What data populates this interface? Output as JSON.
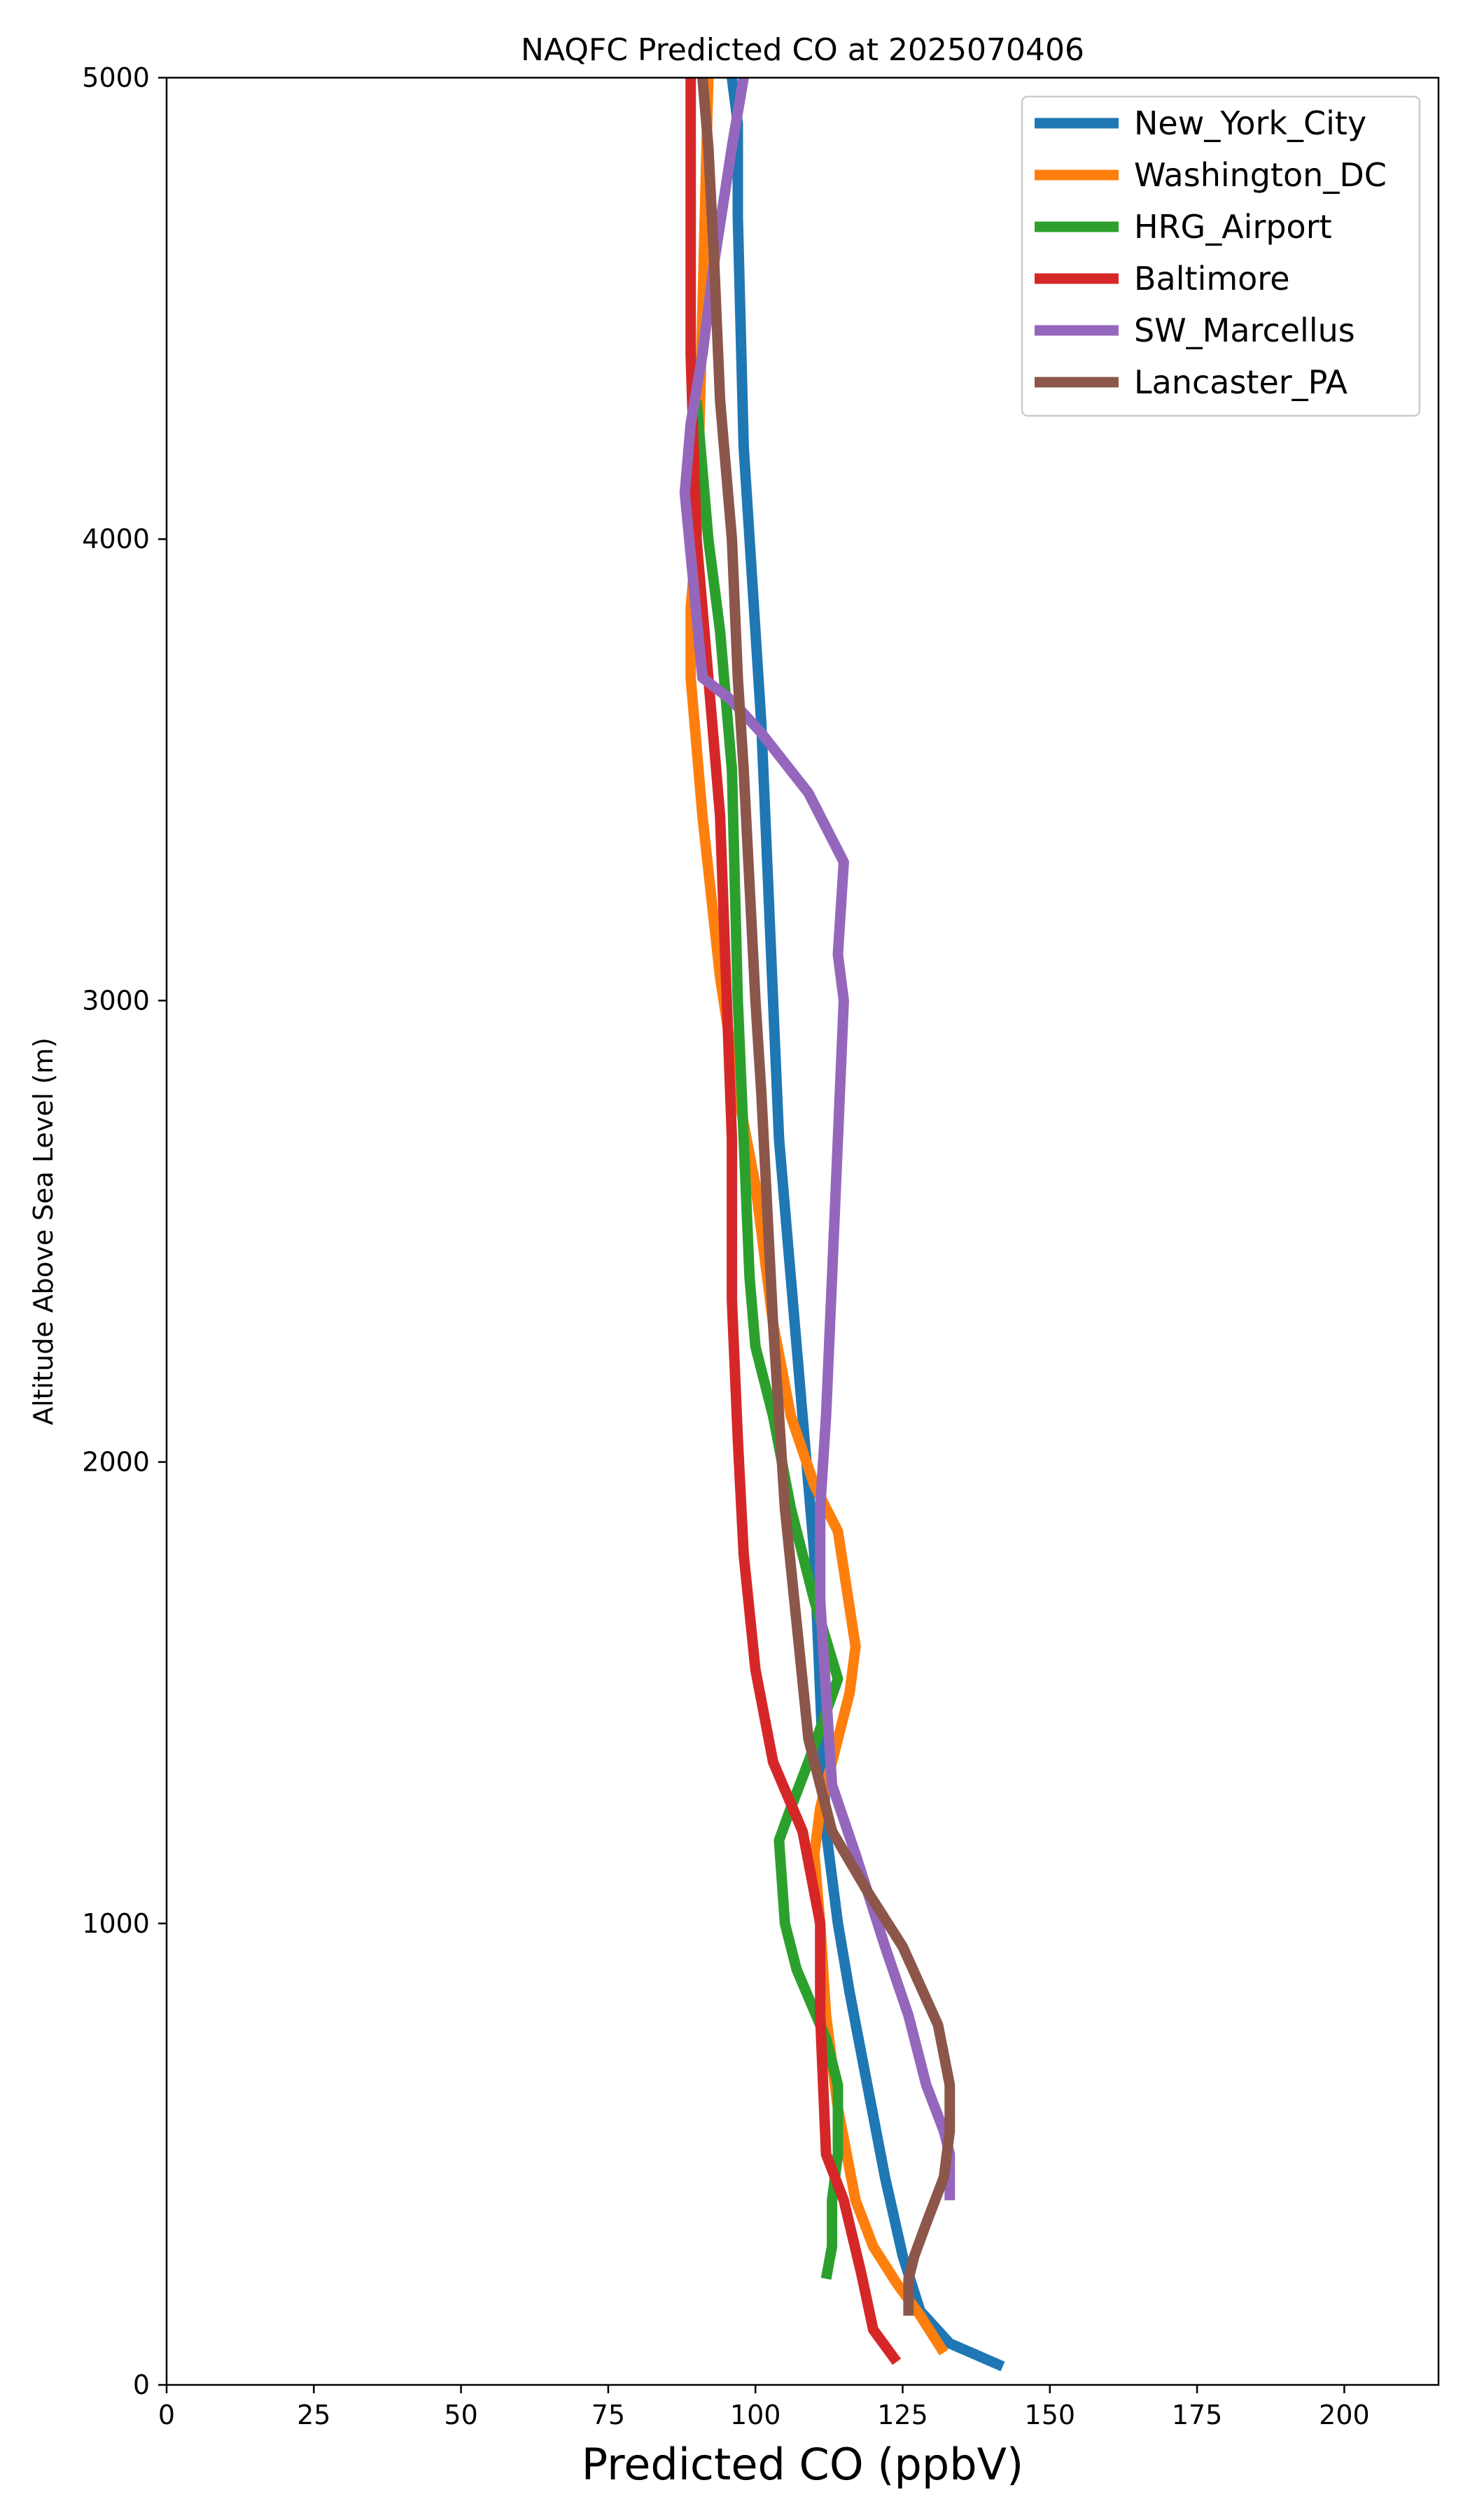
{
  "chart_data": {
    "type": "line",
    "title": "NAQFC Predicted CO at 2025070406",
    "xlabel": "Predicted CO (ppbV)",
    "ylabel": "Altitude Above Sea Level (m)",
    "xlim": [
      0,
      216
    ],
    "ylim": [
      0,
      5000
    ],
    "xticks": [
      0,
      25,
      50,
      75,
      100,
      125,
      150,
      175,
      200
    ],
    "yticks": [
      0,
      1000,
      2000,
      3000,
      4000,
      5000
    ],
    "grid": false,
    "legend_position": "top-right",
    "series": [
      {
        "name": "New_York_City",
        "color": "#1f77b4",
        "x": [
          142,
          133,
          128,
          125,
          122,
          119,
          116,
          114,
          112,
          111,
          110,
          108,
          106,
          104,
          103,
          102,
          101,
          100,
          99,
          98,
          97,
          97,
          96
        ],
        "y": [
          40,
          90,
          160,
          280,
          450,
          650,
          850,
          1000,
          1200,
          1500,
          1800,
          2100,
          2400,
          2700,
          3000,
          3300,
          3600,
          3800,
          4000,
          4200,
          4700,
          4900,
          5000
        ]
      },
      {
        "name": "Washington_DC",
        "color": "#ff7f0e",
        "x": [
          132,
          128,
          124,
          120,
          117,
          114,
          112,
          111,
          110,
          111,
          114,
          116,
          117,
          114,
          110,
          106,
          103,
          100,
          97,
          94,
          91,
          89,
          89,
          90,
          91,
          92
        ],
        "y": [
          70,
          150,
          220,
          300,
          400,
          600,
          800,
          1000,
          1150,
          1250,
          1400,
          1500,
          1600,
          1850,
          1950,
          2100,
          2300,
          2600,
          2800,
          3050,
          3400,
          3700,
          3850,
          4000,
          4500,
          5000
        ]
      },
      {
        "name": "HRG_Airport",
        "color": "#2ca02c",
        "x": [
          112,
          113,
          113,
          114,
          114,
          112,
          107,
          105,
          104,
          106,
          109,
          114,
          110,
          106,
          103,
          100,
          99,
          98,
          97,
          96,
          94,
          92,
          90
        ],
        "y": [
          230,
          300,
          400,
          500,
          650,
          750,
          900,
          1000,
          1180,
          1250,
          1350,
          1530,
          1700,
          1900,
          2100,
          2250,
          2400,
          2700,
          3000,
          3500,
          3800,
          4000,
          4300
        ]
      },
      {
        "name": "Baltimore",
        "color": "#d62728",
        "x": [
          124,
          120,
          118,
          115,
          112,
          111,
          111,
          108,
          103,
          100,
          98,
          97,
          96,
          96,
          95,
          94,
          92,
          90,
          89,
          89,
          89,
          89
        ],
        "y": [
          50,
          120,
          240,
          400,
          500,
          800,
          1000,
          1200,
          1350,
          1550,
          1800,
          2050,
          2350,
          2700,
          3050,
          3400,
          3700,
          4000,
          4400,
          4750,
          4900,
          5000
        ]
      },
      {
        "name": "SW_Marcellus",
        "color": "#9467bd",
        "x": [
          133,
          133,
          132,
          129,
          126,
          122,
          117,
          113,
          112,
          111,
          111,
          112,
          113,
          114,
          115,
          114,
          115,
          109,
          101,
          96,
          91,
          88,
          89,
          91,
          93,
          96,
          98
        ],
        "y": [
          400,
          500,
          550,
          650,
          800,
          950,
          1150,
          1300,
          1500,
          1700,
          1900,
          2100,
          2400,
          2700,
          3000,
          3100,
          3300,
          3450,
          3580,
          3650,
          3700,
          4100,
          4250,
          4400,
          4600,
          4850,
          5000
        ]
      },
      {
        "name": "Lancaster_PA",
        "color": "#8c564b",
        "x": [
          126,
          126,
          127,
          129,
          132,
          133,
          133,
          131,
          125,
          119,
          113,
          109,
          107,
          105,
          104,
          103,
          102,
          101,
          100,
          99,
          98,
          97,
          96,
          94,
          93,
          92,
          91
        ],
        "y": [
          150,
          230,
          280,
          350,
          450,
          550,
          650,
          780,
          950,
          1070,
          1200,
          1400,
          1650,
          1900,
          2100,
          2300,
          2550,
          2800,
          3000,
          3250,
          3500,
          3700,
          4000,
          4300,
          4600,
          4850,
          5000
        ]
      }
    ]
  }
}
